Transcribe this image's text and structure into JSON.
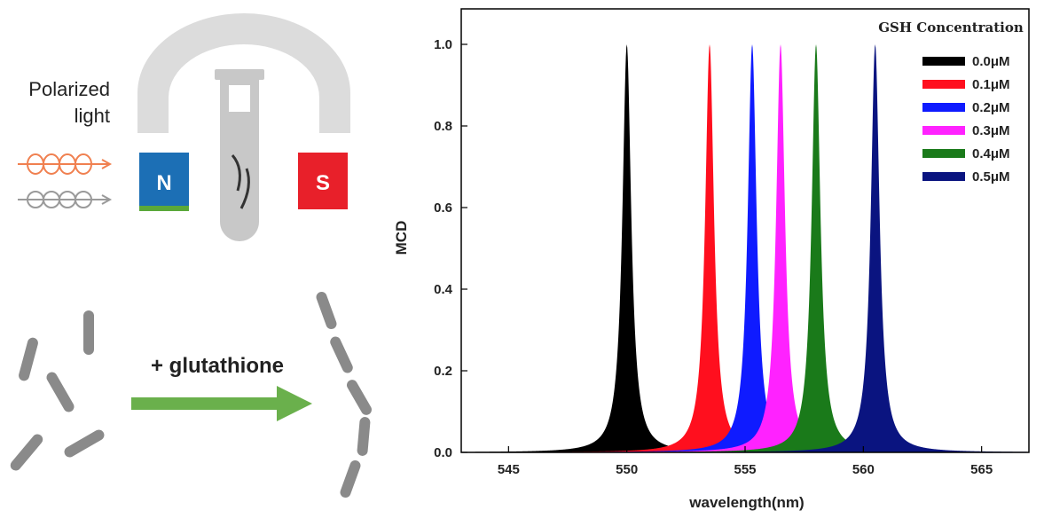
{
  "schematic": {
    "polarized_label_line1": "Polarized",
    "polarized_label_line2": "light",
    "magnet_north": "N",
    "magnet_south": "S",
    "reagent_label": "+ glutathione",
    "colors": {
      "magnet_body": "#dcdcdc",
      "north": "#1c6fb5",
      "south": "#e8202a",
      "rod": "#8a8a8a",
      "arrow": "#6ab04c",
      "light_red": "#f08050",
      "light_gray": "#9a9a9a"
    }
  },
  "chart_data": {
    "type": "area",
    "title": "",
    "legend_title": "GSH Concentration",
    "legend_placement": "top-right",
    "xlabel": "wavelength(nm)",
    "ylabel": "MCD",
    "xlim": [
      543,
      567
    ],
    "ylim": [
      0,
      1.0
    ],
    "xticks": [
      545,
      550,
      555,
      560,
      565
    ],
    "yticks": [
      0.0,
      0.2,
      0.4,
      0.6,
      0.8,
      1.0
    ],
    "grid": false,
    "series": [
      {
        "name": "0.0μM",
        "color": "#000000",
        "peak": 550.0,
        "amplitude": 1.0
      },
      {
        "name": "0.1μM",
        "color": "#ff0f1e",
        "peak": 553.5,
        "amplitude": 1.0
      },
      {
        "name": "0.2μM",
        "color": "#0f1bff",
        "peak": 555.3,
        "amplitude": 1.0
      },
      {
        "name": "0.3μM",
        "color": "#ff22ff",
        "peak": 556.5,
        "amplitude": 1.0
      },
      {
        "name": "0.4μM",
        "color": "#1a7a1a",
        "peak": 558.0,
        "amplitude": 1.0
      },
      {
        "name": "0.5μM",
        "color": "#0a1480",
        "peak": 560.5,
        "amplitude": 1.0
      }
    ]
  }
}
